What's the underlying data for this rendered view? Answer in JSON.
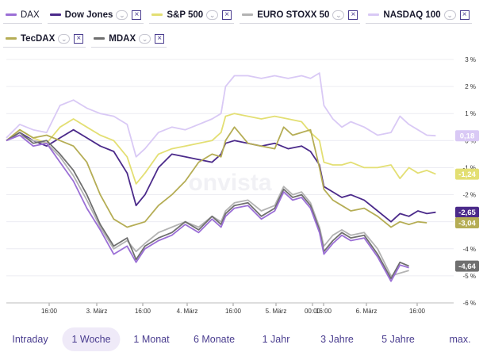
{
  "legend": {
    "row1": [
      {
        "key": "dax",
        "label": "DAX",
        "color": "#9b6fd6",
        "removable": false,
        "dropdown": false,
        "bold": false
      },
      {
        "key": "dow",
        "label": "Dow Jones",
        "color": "#4b2a8a",
        "removable": true,
        "dropdown": true,
        "bold": true
      },
      {
        "key": "sp500",
        "label": "S&P 500",
        "color": "#e3df73",
        "removable": true,
        "dropdown": true,
        "bold": true
      },
      {
        "key": "stoxx",
        "label": "EURO STOXX 50",
        "color": "#b3b3b3",
        "removable": true,
        "dropdown": true,
        "bold": true
      },
      {
        "key": "nasdaq",
        "label": "NASDAQ 100",
        "color": "#d9c9f5",
        "removable": true,
        "dropdown": true,
        "bold": true
      }
    ],
    "row2": [
      {
        "key": "tecdax",
        "label": "TecDAX",
        "color": "#b5ad55",
        "removable": true,
        "dropdown": true,
        "bold": true
      },
      {
        "key": "mdax",
        "label": "MDAX",
        "color": "#6f6f6f",
        "removable": true,
        "dropdown": true,
        "bold": true
      }
    ],
    "chevron": "⌄",
    "close": "×"
  },
  "watermark": "onvista",
  "chart_data": {
    "type": "line",
    "x_ticks": [
      "16:00",
      "3. März",
      "16:00",
      "4. März",
      "16:00",
      "5. März",
      "00:00",
      "16:00",
      "6. März",
      "16:00"
    ],
    "y_ticks": [
      "3 %",
      "2 %",
      "1 %",
      "0 %",
      "-1 %",
      "-2 %",
      "-3 %",
      "-4 %",
      "-5 %",
      "-6 %"
    ],
    "ylim": [
      -6,
      3
    ],
    "xlim": [
      0,
      100
    ],
    "series": [
      {
        "name": "NASDAQ 100",
        "color": "#d9c9f5",
        "end_label": "0,18",
        "end_value": 0.18,
        "points": [
          [
            0,
            0.1
          ],
          [
            3,
            0.6
          ],
          [
            6,
            0.4
          ],
          [
            9,
            0.3
          ],
          [
            12,
            1.3
          ],
          [
            15,
            1.5
          ],
          [
            18,
            1.2
          ],
          [
            21,
            1.0
          ],
          [
            24,
            0.9
          ],
          [
            27,
            0.6
          ],
          [
            29,
            -0.6
          ],
          [
            31,
            -0.3
          ],
          [
            34,
            0.3
          ],
          [
            37,
            0.5
          ],
          [
            40,
            0.4
          ],
          [
            43,
            0.6
          ],
          [
            46,
            0.8
          ],
          [
            48,
            1.0
          ],
          [
            49,
            2.0
          ],
          [
            51,
            2.4
          ],
          [
            54,
            2.4
          ],
          [
            57,
            2.3
          ],
          [
            60,
            2.4
          ],
          [
            63,
            2.3
          ],
          [
            66,
            2.4
          ],
          [
            68,
            2.3
          ],
          [
            70,
            2.5
          ],
          [
            71,
            1.3
          ],
          [
            73,
            0.8
          ],
          [
            75,
            0.5
          ],
          [
            77,
            0.7
          ],
          [
            80,
            0.5
          ],
          [
            83,
            0.2
          ],
          [
            86,
            0.3
          ],
          [
            88,
            0.9
          ],
          [
            90,
            0.6
          ],
          [
            92,
            0.4
          ],
          [
            94,
            0.2
          ],
          [
            96,
            0.18
          ]
        ]
      },
      {
        "name": "S&P 500",
        "color": "#e3df73",
        "end_label": "-1,24",
        "end_value": -1.24,
        "points": [
          [
            0,
            0.0
          ],
          [
            3,
            0.4
          ],
          [
            6,
            0.1
          ],
          [
            9,
            -0.1
          ],
          [
            12,
            0.5
          ],
          [
            15,
            0.8
          ],
          [
            18,
            0.5
          ],
          [
            21,
            0.2
          ],
          [
            24,
            0.0
          ],
          [
            27,
            -0.6
          ],
          [
            29,
            -1.6
          ],
          [
            31,
            -1.2
          ],
          [
            34,
            -0.5
          ],
          [
            37,
            -0.3
          ],
          [
            40,
            -0.2
          ],
          [
            43,
            -0.1
          ],
          [
            46,
            0.0
          ],
          [
            48,
            0.3
          ],
          [
            49,
            0.9
          ],
          [
            51,
            1.0
          ],
          [
            54,
            0.9
          ],
          [
            57,
            0.8
          ],
          [
            60,
            0.9
          ],
          [
            63,
            0.8
          ],
          [
            66,
            0.7
          ],
          [
            68,
            0.3
          ],
          [
            70,
            0.0
          ],
          [
            71,
            -0.8
          ],
          [
            73,
            -0.9
          ],
          [
            75,
            -0.9
          ],
          [
            77,
            -0.8
          ],
          [
            80,
            -1.0
          ],
          [
            83,
            -1.0
          ],
          [
            86,
            -0.9
          ],
          [
            88,
            -1.4
          ],
          [
            90,
            -1.0
          ],
          [
            92,
            -1.2
          ],
          [
            94,
            -1.1
          ],
          [
            96,
            -1.24
          ]
        ]
      },
      {
        "name": "Dow Jones",
        "color": "#4b2a8a",
        "end_label": "-2,65",
        "end_value": -2.65,
        "points": [
          [
            0,
            0.0
          ],
          [
            3,
            0.3
          ],
          [
            6,
            0.0
          ],
          [
            9,
            -0.2
          ],
          [
            12,
            0.1
          ],
          [
            15,
            0.4
          ],
          [
            18,
            0.1
          ],
          [
            21,
            -0.2
          ],
          [
            24,
            -0.4
          ],
          [
            27,
            -1.2
          ],
          [
            29,
            -2.4
          ],
          [
            31,
            -2.0
          ],
          [
            34,
            -1.0
          ],
          [
            37,
            -0.5
          ],
          [
            40,
            -0.6
          ],
          [
            43,
            -0.7
          ],
          [
            46,
            -0.8
          ],
          [
            48,
            -0.5
          ],
          [
            49,
            -0.1
          ],
          [
            51,
            0.0
          ],
          [
            54,
            -0.1
          ],
          [
            57,
            -0.2
          ],
          [
            60,
            -0.1
          ],
          [
            63,
            -0.3
          ],
          [
            66,
            -0.2
          ],
          [
            68,
            -0.4
          ],
          [
            70,
            -0.9
          ],
          [
            71,
            -1.7
          ],
          [
            73,
            -1.9
          ],
          [
            75,
            -2.1
          ],
          [
            77,
            -2.0
          ],
          [
            80,
            -2.2
          ],
          [
            83,
            -2.6
          ],
          [
            86,
            -3.0
          ],
          [
            88,
            -2.7
          ],
          [
            90,
            -2.8
          ],
          [
            92,
            -2.6
          ],
          [
            94,
            -2.7
          ],
          [
            96,
            -2.65
          ]
        ]
      },
      {
        "name": "TecDAX",
        "color": "#b5ad55",
        "end_label": "-3,04",
        "end_value": -3.04,
        "points": [
          [
            0,
            0.0
          ],
          [
            3,
            0.4
          ],
          [
            6,
            0.1
          ],
          [
            9,
            0.2
          ],
          [
            12,
            0.0
          ],
          [
            15,
            -0.2
          ],
          [
            18,
            -0.8
          ],
          [
            21,
            -2.0
          ],
          [
            24,
            -2.9
          ],
          [
            27,
            -3.2
          ],
          [
            29,
            -3.1
          ],
          [
            31,
            -3.0
          ],
          [
            34,
            -2.4
          ],
          [
            37,
            -2.0
          ],
          [
            40,
            -1.5
          ],
          [
            43,
            -0.8
          ],
          [
            46,
            -0.5
          ],
          [
            48,
            -0.6
          ],
          [
            49,
            0.0
          ],
          [
            51,
            0.5
          ],
          [
            54,
            -0.1
          ],
          [
            57,
            -0.2
          ],
          [
            60,
            -0.3
          ],
          [
            62,
            0.5
          ],
          [
            64,
            0.2
          ],
          [
            66,
            0.3
          ],
          [
            68,
            0.4
          ],
          [
            70,
            -1.0
          ],
          [
            71,
            -1.8
          ],
          [
            73,
            -2.2
          ],
          [
            75,
            -2.4
          ],
          [
            77,
            -2.6
          ],
          [
            80,
            -2.5
          ],
          [
            83,
            -2.8
          ],
          [
            86,
            -3.2
          ],
          [
            88,
            -3.0
          ],
          [
            90,
            -3.1
          ],
          [
            92,
            -3.0
          ],
          [
            94,
            -3.04
          ]
        ]
      },
      {
        "name": "EURO STOXX 50",
        "color": "#b3b3b3",
        "end_label": "",
        "end_value": null,
        "points": [
          [
            0,
            0.0
          ],
          [
            3,
            0.2
          ],
          [
            6,
            0.0
          ],
          [
            9,
            -0.1
          ],
          [
            12,
            -0.6
          ],
          [
            15,
            -1.3
          ],
          [
            18,
            -2.2
          ],
          [
            21,
            -3.2
          ],
          [
            24,
            -4.0
          ],
          [
            27,
            -3.7
          ],
          [
            29,
            -4.1
          ],
          [
            31,
            -3.8
          ],
          [
            34,
            -3.4
          ],
          [
            37,
            -3.2
          ],
          [
            40,
            -3.0
          ],
          [
            43,
            -3.2
          ],
          [
            46,
            -2.8
          ],
          [
            48,
            -3.0
          ],
          [
            49,
            -2.6
          ],
          [
            51,
            -2.3
          ],
          [
            54,
            -2.2
          ],
          [
            57,
            -2.6
          ],
          [
            60,
            -2.4
          ],
          [
            62,
            -1.7
          ],
          [
            64,
            -2.0
          ],
          [
            66,
            -1.9
          ],
          [
            68,
            -2.3
          ],
          [
            70,
            -3.2
          ],
          [
            71,
            -3.9
          ],
          [
            73,
            -3.5
          ],
          [
            75,
            -3.3
          ],
          [
            77,
            -3.5
          ],
          [
            80,
            -3.4
          ],
          [
            83,
            -4.0
          ],
          [
            86,
            -5.0
          ],
          [
            88,
            -4.9
          ],
          [
            90,
            -4.8
          ]
        ]
      },
      {
        "name": "MDAX",
        "color": "#6f6f6f",
        "end_label": "-4,64",
        "end_value": -4.64,
        "points": [
          [
            0,
            0.0
          ],
          [
            3,
            0.3
          ],
          [
            6,
            -0.1
          ],
          [
            9,
            0.0
          ],
          [
            12,
            -0.5
          ],
          [
            15,
            -1.1
          ],
          [
            18,
            -2.0
          ],
          [
            21,
            -3.1
          ],
          [
            24,
            -3.9
          ],
          [
            27,
            -3.6
          ],
          [
            29,
            -4.4
          ],
          [
            31,
            -3.9
          ],
          [
            34,
            -3.6
          ],
          [
            37,
            -3.4
          ],
          [
            40,
            -3.0
          ],
          [
            43,
            -3.3
          ],
          [
            46,
            -2.8
          ],
          [
            48,
            -3.1
          ],
          [
            49,
            -2.7
          ],
          [
            51,
            -2.4
          ],
          [
            54,
            -2.3
          ],
          [
            57,
            -2.8
          ],
          [
            60,
            -2.5
          ],
          [
            62,
            -1.8
          ],
          [
            64,
            -2.1
          ],
          [
            66,
            -2.0
          ],
          [
            68,
            -2.4
          ],
          [
            70,
            -3.3
          ],
          [
            71,
            -4.1
          ],
          [
            73,
            -3.7
          ],
          [
            75,
            -3.4
          ],
          [
            77,
            -3.6
          ],
          [
            80,
            -3.5
          ],
          [
            83,
            -4.2
          ],
          [
            86,
            -5.1
          ],
          [
            88,
            -4.5
          ],
          [
            90,
            -4.64
          ]
        ]
      },
      {
        "name": "DAX",
        "color": "#9b6fd6",
        "end_label": "",
        "end_value": null,
        "points": [
          [
            0,
            0.0
          ],
          [
            3,
            0.2
          ],
          [
            6,
            -0.2
          ],
          [
            9,
            -0.1
          ],
          [
            12,
            -0.8
          ],
          [
            15,
            -1.5
          ],
          [
            18,
            -2.5
          ],
          [
            21,
            -3.3
          ],
          [
            24,
            -4.2
          ],
          [
            27,
            -3.9
          ],
          [
            29,
            -4.5
          ],
          [
            31,
            -4.0
          ],
          [
            34,
            -3.7
          ],
          [
            37,
            -3.5
          ],
          [
            40,
            -3.1
          ],
          [
            43,
            -3.4
          ],
          [
            46,
            -2.9
          ],
          [
            48,
            -3.2
          ],
          [
            49,
            -2.8
          ],
          [
            51,
            -2.5
          ],
          [
            54,
            -2.4
          ],
          [
            57,
            -2.9
          ],
          [
            60,
            -2.6
          ],
          [
            62,
            -1.9
          ],
          [
            64,
            -2.2
          ],
          [
            66,
            -2.1
          ],
          [
            68,
            -2.5
          ],
          [
            70,
            -3.4
          ],
          [
            71,
            -4.2
          ],
          [
            73,
            -3.8
          ],
          [
            75,
            -3.5
          ],
          [
            77,
            -3.7
          ],
          [
            80,
            -3.6
          ],
          [
            83,
            -4.3
          ],
          [
            86,
            -5.2
          ],
          [
            88,
            -4.6
          ],
          [
            90,
            -4.7
          ]
        ]
      }
    ],
    "end_badges": [
      {
        "value": 0.18,
        "label": "0,18",
        "bg": "#d9c9f5",
        "fg": "#ffffff"
      },
      {
        "value": -1.24,
        "label": "-1,24",
        "bg": "#e3df73",
        "fg": "#ffffff"
      },
      {
        "value": -2.65,
        "label": "-2,65",
        "bg": "#4b2a8a",
        "fg": "#ffffff"
      },
      {
        "value": -3.04,
        "label": "-3,04",
        "bg": "#b5ad55",
        "fg": "#ffffff"
      },
      {
        "value": -4.64,
        "label": "-4,64",
        "bg": "#6f6f6f",
        "fg": "#ffffff"
      }
    ],
    "grid": true
  },
  "timeframes": {
    "items": [
      "Intraday",
      "1 Woche",
      "1 Monat",
      "6 Monate",
      "1 Jahr",
      "3 Jahre",
      "5 Jahre",
      "max."
    ],
    "active": "1 Woche"
  }
}
